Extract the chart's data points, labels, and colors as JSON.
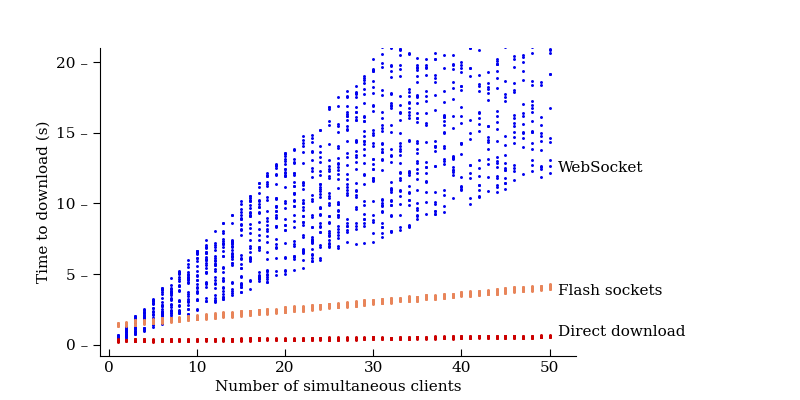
{
  "title": "",
  "xlabel": "Number of simultaneous clients",
  "ylabel": "Time to download (s)",
  "xlim": [
    -1,
    53
  ],
  "ylim": [
    -0.8,
    21
  ],
  "yticks": [
    0,
    5,
    10,
    15,
    20
  ],
  "xticks": [
    0,
    10,
    20,
    30,
    40,
    50
  ],
  "websocket_color": "#0000ee",
  "flash_color": "#e8855a",
  "direct_color": "#cc0000",
  "websocket_label": "WebSocket",
  "flash_label": "Flash sockets",
  "direct_label": "Direct download",
  "background_color": "#ffffff",
  "seed": 42,
  "n_clients_max": 50,
  "dot_size": 4.5,
  "annotation_fontsize": 11,
  "axis_fontsize": 11,
  "tick_fontsize": 11
}
